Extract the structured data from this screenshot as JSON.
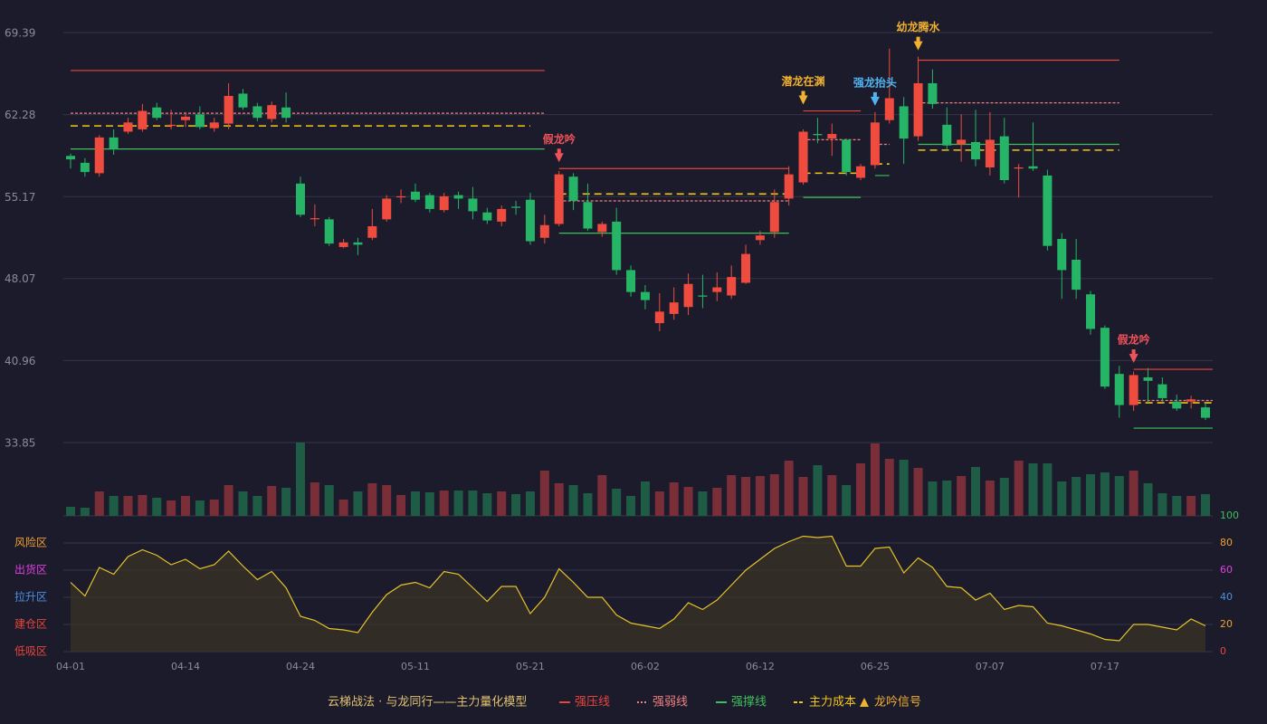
{
  "chart_data": {
    "type": "candlestick",
    "title": "云梯战法 · 与龙同行——主力量化模型",
    "categories": [
      "04-01",
      null,
      null,
      null,
      null,
      null,
      null,
      null,
      "04-14",
      null,
      null,
      null,
      null,
      null,
      null,
      null,
      "04-24",
      null,
      null,
      null,
      null,
      null,
      null,
      null,
      "05-11",
      null,
      null,
      null,
      null,
      null,
      null,
      null,
      "05-21",
      null,
      null,
      null,
      null,
      null,
      null,
      null,
      "06-02",
      null,
      null,
      null,
      null,
      null,
      null,
      null,
      "06-12",
      null,
      null,
      null,
      null,
      null,
      null,
      null,
      "06-25",
      null,
      null,
      null,
      null,
      null,
      null,
      null,
      "07-07",
      null,
      null,
      null,
      null,
      null,
      null,
      null,
      "07-17",
      null,
      null,
      null,
      null,
      null,
      null,
      null
    ],
    "open": [
      58.7,
      58.1,
      57.2,
      60.3,
      60.8,
      61.0,
      62.9,
      61.3,
      61.8,
      62.3,
      61.1,
      61.5,
      64.1,
      63.0,
      61.9,
      62.9,
      56.3,
      53.2,
      53.2,
      50.8,
      51.2,
      51.6,
      53.2,
      55.1,
      55.6,
      55.3,
      54.0,
      55.3,
      55.0,
      53.8,
      53.0,
      54.3,
      54.9,
      51.6,
      52.8,
      56.9,
      54.7,
      52.1,
      53.0,
      48.8,
      46.9,
      44.2,
      45.0,
      45.6,
      46.6,
      46.9,
      46.6,
      47.7,
      51.4,
      52.1,
      55.0,
      56.4,
      60.6,
      60.2,
      60.1,
      56.8,
      57.9,
      61.8,
      63.0,
      60.4,
      65.0,
      61.4,
      59.7,
      59.9,
      57.7,
      60.4,
      57.6,
      57.8,
      57.0,
      51.5,
      49.7,
      46.7,
      43.8,
      39.8,
      37.1,
      39.5,
      38.9,
      37.4,
      37.4,
      36.9
    ],
    "high": [
      58.9,
      58.5,
      60.5,
      61.0,
      62.0,
      63.2,
      63.3,
      62.7,
      62.5,
      63.0,
      62.0,
      65.0,
      64.5,
      63.3,
      63.4,
      64.2,
      56.9,
      54.5,
      53.4,
      51.5,
      51.6,
      54.1,
      55.3,
      55.8,
      56.3,
      55.5,
      55.5,
      55.6,
      56.0,
      54.2,
      54.4,
      54.8,
      55.5,
      53.6,
      57.4,
      57.2,
      56.3,
      53.0,
      54.2,
      49.2,
      47.5,
      46.8,
      47.3,
      48.5,
      48.4,
      48.6,
      49.2,
      51.0,
      52.2,
      55.8,
      57.8,
      61.0,
      62.0,
      61.5,
      60.2,
      58.0,
      62.5,
      68.0,
      63.8,
      67.3,
      66.2,
      62.9,
      62.3,
      62.7,
      62.5,
      62.0,
      58.0,
      61.6,
      57.5,
      52.0,
      51.5,
      47.0,
      44.0,
      40.5,
      40.0,
      40.3,
      39.5,
      38.0,
      37.9,
      37.3
    ],
    "low": [
      57.6,
      56.9,
      56.9,
      58.8,
      60.6,
      60.8,
      61.8,
      61.0,
      61.2,
      61.0,
      60.8,
      61.0,
      62.7,
      61.7,
      61.6,
      61.6,
      53.4,
      52.6,
      50.9,
      50.7,
      50.1,
      51.4,
      53.0,
      54.6,
      54.7,
      53.8,
      53.8,
      54.1,
      53.2,
      52.8,
      52.6,
      53.6,
      51.0,
      51.1,
      52.6,
      54.0,
      52.2,
      51.7,
      48.4,
      46.5,
      45.4,
      43.5,
      44.5,
      44.9,
      45.5,
      46.1,
      46.3,
      47.6,
      51.0,
      51.6,
      54.4,
      56.2,
      59.8,
      58.7,
      57.0,
      56.6,
      57.6,
      61.5,
      58.0,
      60.0,
      62.8,
      59.2,
      58.2,
      57.8,
      57.0,
      56.3,
      55.1,
      57.4,
      50.5,
      46.3,
      46.3,
      43.2,
      38.5,
      36.0,
      36.6,
      37.3,
      37.4,
      36.6,
      36.8,
      35.8
    ],
    "close": [
      58.4,
      57.3,
      60.3,
      59.3,
      61.6,
      62.6,
      62.0,
      61.4,
      62.1,
      61.2,
      61.6,
      63.9,
      62.9,
      62.0,
      63.1,
      62.0,
      53.6,
      53.3,
      51.1,
      51.2,
      51.0,
      52.6,
      55.0,
      55.2,
      54.9,
      54.1,
      55.2,
      55.0,
      53.9,
      53.1,
      54.1,
      54.2,
      51.3,
      52.7,
      57.1,
      54.8,
      52.4,
      52.8,
      48.8,
      46.9,
      46.2,
      45.2,
      46.0,
      47.6,
      46.5,
      47.3,
      48.2,
      50.2,
      51.8,
      54.7,
      57.1,
      60.8,
      60.5,
      60.6,
      57.3,
      57.8,
      61.6,
      63.7,
      60.2,
      65.0,
      63.2,
      59.6,
      60.1,
      58.4,
      60.1,
      56.6,
      57.7,
      57.6,
      50.9,
      48.8,
      47.1,
      43.7,
      38.7,
      37.1,
      39.7,
      39.2,
      37.7,
      36.8,
      37.6,
      36.0
    ],
    "volume": [
      10,
      9,
      27,
      22,
      22,
      23,
      20,
      17,
      22,
      17,
      18,
      34,
      27,
      22,
      33,
      31,
      81,
      37,
      34,
      18,
      27,
      36,
      34,
      23,
      27,
      26,
      28,
      28,
      28,
      25,
      27,
      24,
      27,
      50,
      36,
      34,
      25,
      45,
      30,
      22,
      38,
      27,
      37,
      32,
      27,
      31,
      45,
      43,
      44,
      46,
      61,
      43,
      56,
      45,
      34,
      58,
      80,
      63,
      62,
      53,
      38,
      39,
      44,
      54,
      39,
      42,
      61,
      58,
      58,
      38,
      43,
      46,
      48,
      44,
      50,
      36,
      25,
      22,
      22,
      24
    ],
    "up_color": "#ef4b3f",
    "down_color": "#26b567",
    "volume_up_color": "#7a2e37",
    "volume_down_color": "#1f5c45",
    "ylim": [
      33.85,
      69.39
    ],
    "yticks": [
      33.85,
      40.96,
      48.07,
      55.17,
      62.28,
      69.39
    ],
    "grid": true,
    "lines": [
      {
        "name": "强压线",
        "color": "#e8453c",
        "style": "solid",
        "segments": [
          {
            "start": 0,
            "end": 33,
            "value": 66.1
          },
          {
            "start": 34,
            "end": 50,
            "value": 57.6
          },
          {
            "start": 51,
            "end": 55,
            "value": 62.6
          },
          {
            "start": 59,
            "end": 73,
            "value": 67.0
          },
          {
            "start": 74,
            "end": 79,
            "value": 40.2
          }
        ]
      },
      {
        "name": "强弱线",
        "color": "#f08080",
        "style": "dotted",
        "segments": [
          {
            "start": 0,
            "end": 33,
            "value": 62.4
          },
          {
            "start": 34,
            "end": 50,
            "value": 54.8
          },
          {
            "start": 51,
            "end": 55,
            "value": 60.1
          },
          {
            "start": 56,
            "end": 57,
            "value": 59.7
          },
          {
            "start": 59,
            "end": 73,
            "value": 63.3
          },
          {
            "start": 74,
            "end": 79,
            "value": 37.5
          }
        ]
      },
      {
        "name": "强撑线",
        "color": "#3fbf5a",
        "style": "solid",
        "segments": [
          {
            "start": 0,
            "end": 33,
            "value": 59.3
          },
          {
            "start": 34,
            "end": 50,
            "value": 52.0
          },
          {
            "start": 51,
            "end": 55,
            "value": 55.1
          },
          {
            "start": 56,
            "end": 57,
            "value": 57.0
          },
          {
            "start": 59,
            "end": 73,
            "value": 59.7
          },
          {
            "start": 74,
            "end": 79,
            "value": 35.1
          }
        ]
      },
      {
        "name": "主力成本",
        "color": "#f5c518",
        "style": "dashed",
        "segments": [
          {
            "start": 0,
            "end": 32,
            "value": 61.3
          },
          {
            "start": 34,
            "end": 50,
            "value": 55.4
          },
          {
            "start": 51,
            "end": 55,
            "value": 57.2
          },
          {
            "start": 56,
            "end": 57,
            "value": 58.0
          },
          {
            "start": 59,
            "end": 73,
            "value": 59.2
          },
          {
            "start": 74,
            "end": 79,
            "value": 37.3
          }
        ]
      }
    ],
    "signals": {
      "name": "龙吟信号",
      "color": "#f0b030",
      "items": [
        {
          "label": "假龙吟",
          "index": 34,
          "color": "#f0525a"
        },
        {
          "label": "潜龙在渊",
          "index": 51,
          "color": "#f0b030"
        },
        {
          "label": "强龙抬头",
          "index": 56,
          "color": "#4fb3f0"
        },
        {
          "label": "幼龙腾水",
          "index": 59,
          "color": "#f0b030"
        },
        {
          "label": "假龙吟",
          "index": 74,
          "color": "#f0525a"
        }
      ]
    },
    "indicator": {
      "values": [
        51,
        41,
        62,
        57,
        70,
        75,
        71,
        64,
        68,
        61,
        64,
        74,
        63,
        53,
        59,
        47,
        26,
        23,
        17,
        16,
        14,
        29,
        42,
        49,
        51,
        47,
        59,
        57,
        47,
        37,
        48,
        48,
        28,
        40,
        61,
        51,
        40,
        40,
        27,
        21,
        19,
        17,
        24,
        36,
        31,
        38,
        49,
        60,
        68,
        76,
        81,
        85,
        84,
        85,
        63,
        63,
        76,
        77,
        58,
        69,
        62,
        48,
        47,
        38,
        43,
        31,
        34,
        33,
        21,
        19,
        16,
        13,
        9,
        8,
        20,
        20,
        18,
        16,
        24,
        19
      ],
      "color": "#e6c229",
      "fill": "#3a3426",
      "ylim": [
        0,
        100
      ],
      "yticks": [
        0,
        20,
        40,
        60,
        80,
        100
      ],
      "ytick_colors": [
        "#e8453c",
        "#f0a030",
        "#4a90e2",
        "#e040e0",
        "#f0a030",
        "#3fbf5a"
      ],
      "zones": [
        {
          "label": "风险区",
          "value": 80,
          "color": "#f0a030"
        },
        {
          "label": "出货区",
          "value": 60,
          "color": "#e040e0"
        },
        {
          "label": "拉升区",
          "value": 40,
          "color": "#4a90e2"
        },
        {
          "label": "建仓区",
          "value": 20,
          "color": "#e8453c"
        },
        {
          "label": "低吸区",
          "value": 0,
          "color": "#e8453c"
        }
      ]
    }
  }
}
